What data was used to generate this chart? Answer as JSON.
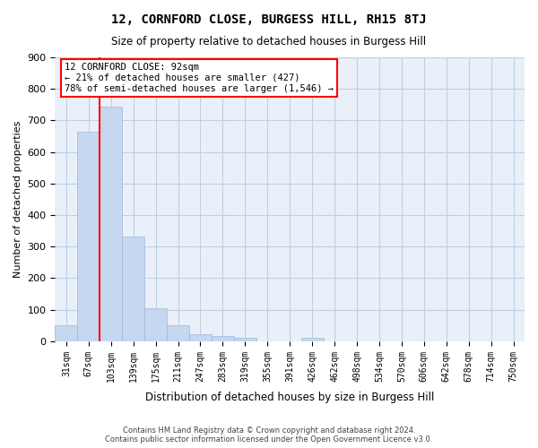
{
  "title": "12, CORNFORD CLOSE, BURGESS HILL, RH15 8TJ",
  "subtitle": "Size of property relative to detached houses in Burgess Hill",
  "xlabel": "Distribution of detached houses by size in Burgess Hill",
  "ylabel": "Number of detached properties",
  "footer_line1": "Contains HM Land Registry data © Crown copyright and database right 2024.",
  "footer_line2": "Contains public sector information licensed under the Open Government Licence v3.0.",
  "bins": [
    "31sqm",
    "67sqm",
    "103sqm",
    "139sqm",
    "175sqm",
    "211sqm",
    "247sqm",
    "283sqm",
    "319sqm",
    "355sqm",
    "391sqm",
    "426sqm",
    "462sqm",
    "498sqm",
    "534sqm",
    "570sqm",
    "606sqm",
    "642sqm",
    "678sqm",
    "714sqm",
    "750sqm"
  ],
  "values": [
    50,
    663,
    743,
    333,
    105,
    50,
    22,
    16,
    10,
    0,
    0,
    10,
    0,
    0,
    0,
    0,
    0,
    0,
    0,
    0,
    0
  ],
  "bar_color": "#c5d8f0",
  "bar_edge_color": "#a0b8d8",
  "grid_color": "#c0cfe0",
  "background_color": "#eaf0fa",
  "vline_x": 1.5,
  "annotation_text_line1": "12 CORNFORD CLOSE: 92sqm",
  "annotation_text_line2": "← 21% of detached houses are smaller (427)",
  "annotation_text_line3": "78% of semi-detached houses are larger (1,546) →",
  "annotation_box_color": "white",
  "annotation_box_edge_color": "red",
  "vline_color": "red",
  "ylim": [
    0,
    900
  ],
  "yticks": [
    0,
    100,
    200,
    300,
    400,
    500,
    600,
    700,
    800,
    900
  ]
}
